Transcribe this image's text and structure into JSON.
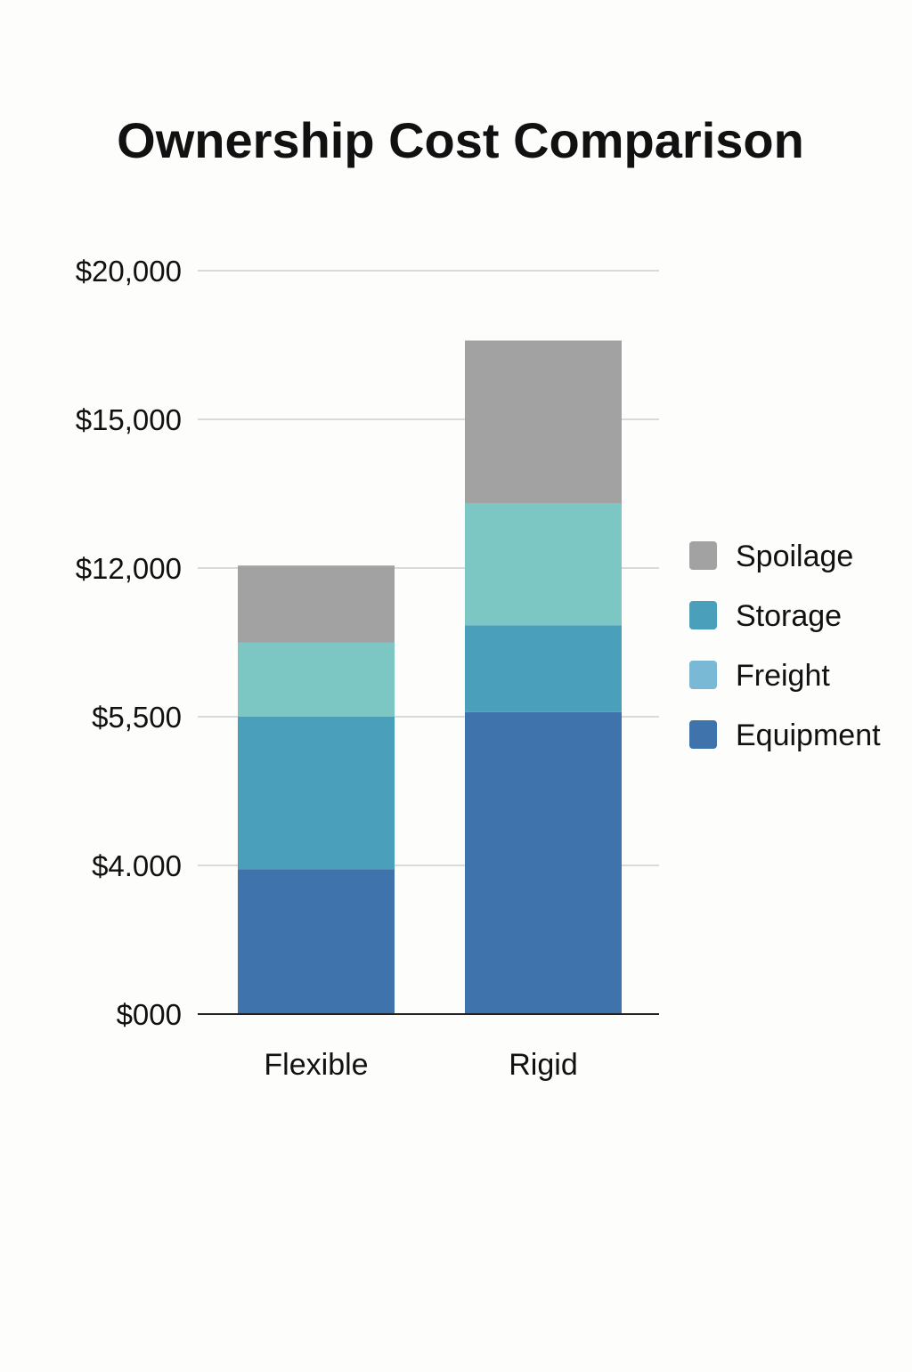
{
  "chart_data": {
    "type": "bar",
    "stacked": true,
    "title": "Ownership Cost Comparison",
    "xlabel": "",
    "ylabel": "",
    "categories": [
      "Flexible",
      "Rigid"
    ],
    "y_ticks": [
      {
        "label": "$000",
        "value": 0
      },
      {
        "label": "$4.000",
        "value": 4000
      },
      {
        "label": "$5,500",
        "value": 5500
      },
      {
        "label": "$12,000",
        "value": 12000
      },
      {
        "label": "$15,000",
        "value": 15000
      },
      {
        "label": "$20,000",
        "value": 20000
      }
    ],
    "series": [
      {
        "name": "Equipment",
        "color": "#3f73ab",
        "values": [
          3900,
          5700
        ]
      },
      {
        "name": "Storage",
        "color": "#4a9fbb",
        "values": [
          1600,
          3800
        ]
      },
      {
        "name": "Freight",
        "color": "#7cc6c3",
        "values": [
          3250,
          3800
        ]
      },
      {
        "name": "Spoilage",
        "color": "#a2a2a2",
        "values": [
          3300,
          4350
        ]
      }
    ],
    "legend": {
      "placement": "right",
      "order": [
        "Spoilage",
        "Storage",
        "Freight",
        "Equipment"
      ],
      "swatch_colors": {
        "Spoilage": "#a2a2a2",
        "Storage": "#4a9fbb",
        "Freight": "#7ab9d6",
        "Equipment": "#3f73ab"
      }
    },
    "grid": true
  }
}
